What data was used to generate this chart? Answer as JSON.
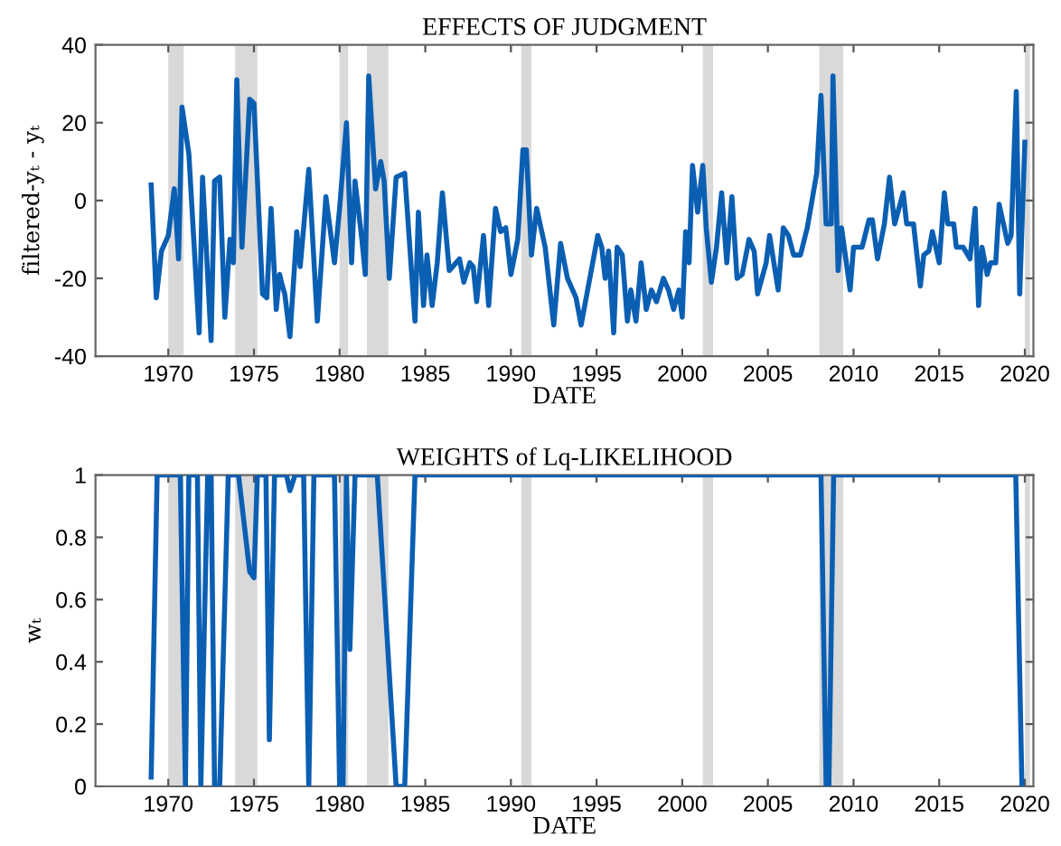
{
  "chart_data": [
    {
      "type": "line",
      "title": "EFFECTS OF JUDGMENT",
      "xlabel": "DATE",
      "ylabel": "filtered-yₜ - yₜ",
      "xlim": [
        1965.75,
        2020.5
      ],
      "xticks": [
        1970,
        1975,
        1980,
        1985,
        1990,
        1995,
        2000,
        2005,
        2010,
        2015,
        2020
      ],
      "ylim": [
        -40,
        40
      ],
      "yticks": [
        -40,
        -20,
        0,
        20,
        40
      ],
      "grid": false,
      "line_style": "solid",
      "marker": "none",
      "bands": [
        {
          "axis": "x",
          "from": 1970.0,
          "to": 1970.9,
          "color": "#d9d9d9"
        },
        {
          "axis": "x",
          "from": 1973.9,
          "to": 1975.2,
          "color": "#d9d9d9"
        },
        {
          "axis": "x",
          "from": 1980.0,
          "to": 1980.5,
          "color": "#d9d9d9"
        },
        {
          "axis": "x",
          "from": 1981.6,
          "to": 1982.85,
          "color": "#d9d9d9"
        },
        {
          "axis": "x",
          "from": 1990.6,
          "to": 1991.2,
          "color": "#d9d9d9"
        },
        {
          "axis": "x",
          "from": 2001.2,
          "to": 2001.8,
          "color": "#d9d9d9"
        },
        {
          "axis": "x",
          "from": 2008.0,
          "to": 2009.4,
          "color": "#d9d9d9"
        },
        {
          "axis": "x",
          "from": 2020.0,
          "to": 2020.3,
          "color": "#d9d9d9"
        }
      ],
      "series": [
        {
          "color": "#0b5fb3",
          "x": [
            1969.0,
            1969.3,
            1969.6,
            1970.0,
            1970.35,
            1970.6,
            1970.8,
            1971.2,
            1971.8,
            1972.0,
            1972.5,
            1972.7,
            1973.0,
            1973.3,
            1973.6,
            1973.8,
            1974.0,
            1974.3,
            1974.75,
            1975.0,
            1975.5,
            1975.75,
            1976.0,
            1976.3,
            1976.5,
            1976.6,
            1976.8,
            1977.1,
            1977.5,
            1977.7,
            1978.2,
            1978.7,
            1979.2,
            1979.7,
            1980.0,
            1980.4,
            1980.7,
            1980.9,
            1981.3,
            1981.5,
            1981.7,
            1982.1,
            1982.4,
            1982.6,
            1982.9,
            1983.3,
            1983.8,
            1984.4,
            1984.6,
            1984.9,
            1985.1,
            1985.4,
            1985.7,
            1986.0,
            1986.4,
            1987.0,
            1987.25,
            1987.6,
            1987.8,
            1988.0,
            1988.4,
            1988.7,
            1989.1,
            1989.4,
            1989.7,
            1990.0,
            1990.4,
            1990.7,
            1990.9,
            1991.2,
            1991.5,
            1992.0,
            1992.5,
            1992.9,
            1993.3,
            1993.8,
            1994.1,
            1995.07,
            1995.3,
            1995.5,
            1995.7,
            1996.0,
            1996.2,
            1996.5,
            1996.8,
            1997.0,
            1997.3,
            1997.6,
            1997.9,
            1998.2,
            1998.5,
            1998.7,
            1998.9,
            1999.2,
            1999.5,
            1999.8,
            2000.0,
            2000.2,
            2000.4,
            2000.6,
            2000.9,
            2001.2,
            2001.4,
            2001.7,
            2002.0,
            2002.3,
            2002.6,
            2002.9,
            2003.2,
            2003.5,
            2003.9,
            2004.2,
            2004.4,
            2004.9,
            2005.1,
            2005.6,
            2005.9,
            2006.2,
            2006.5,
            2006.9,
            2007.3,
            2007.85,
            2008.1,
            2008.4,
            2008.7,
            2008.8,
            2009.1,
            2009.3,
            2009.8,
            2010.0,
            2010.5,
            2010.9,
            2011.1,
            2011.4,
            2011.8,
            2012.1,
            2012.4,
            2012.9,
            2013.1,
            2013.5,
            2013.9,
            2014.1,
            2014.4,
            2014.6,
            2015.0,
            2015.3,
            2015.5,
            2015.85,
            2016.0,
            2016.4,
            2016.8,
            2017.1,
            2017.3,
            2017.5,
            2017.8,
            2018.0,
            2018.3,
            2018.5,
            2019.0,
            2019.2,
            2019.5,
            2019.7,
            2020.0
          ],
          "values": [
            4,
            -25,
            -13,
            -9,
            3,
            -15,
            24,
            12,
            -34,
            6,
            -36,
            5,
            6,
            -30,
            -10,
            -16,
            31,
            -12,
            26,
            25,
            -24,
            -25,
            -2,
            -28,
            -19,
            -21,
            -24,
            -35,
            -8,
            -17,
            8,
            -31,
            1,
            -16,
            -2,
            20,
            -16,
            5,
            -10,
            -19,
            32,
            3,
            10,
            5,
            -20,
            6,
            7,
            -31,
            -3,
            -27,
            -14,
            -27,
            -16,
            2,
            -18,
            -15,
            -21,
            -16,
            -17,
            -26,
            -9,
            -27,
            -2,
            -8,
            -7,
            -19,
            -10,
            13,
            13,
            -14,
            -2,
            -12,
            -32,
            -11,
            -20,
            -25,
            -32,
            -9,
            -12,
            -20,
            -13,
            -34,
            -12,
            -14,
            -31,
            -23,
            -31,
            -16,
            -28,
            -23,
            -26,
            -23,
            -20,
            -23,
            -28,
            -23,
            -30,
            -8,
            -16,
            9,
            -3,
            9,
            -7,
            -21,
            -12,
            2,
            -16,
            1,
            -20,
            -19,
            -10,
            -13,
            -24,
            -16,
            -9,
            -23,
            -7,
            -9,
            -14,
            -14,
            -7,
            7,
            27,
            -6,
            -6,
            32,
            -18,
            -7,
            -23,
            -12,
            -12,
            -5,
            -5,
            -15,
            -6,
            6,
            -6,
            2,
            -6,
            -6,
            -22,
            -14,
            -13,
            -8,
            -16,
            2,
            -6,
            -6,
            -12,
            -12,
            -15,
            -2,
            -27,
            -12,
            -19,
            -16,
            -16,
            -1,
            -11,
            -9,
            28,
            -24,
            15
          ]
        }
      ]
    },
    {
      "type": "line",
      "title": "WEIGHTS of Lq-LIKELIHOOD",
      "xlabel": "DATE",
      "ylabel": "wₜ",
      "xlim": [
        1965.75,
        2020.5
      ],
      "xticks": [
        1970,
        1975,
        1980,
        1985,
        1990,
        1995,
        2000,
        2005,
        2010,
        2015,
        2020
      ],
      "ylim": [
        0,
        1
      ],
      "yticks": [
        0,
        0.2,
        0.4,
        0.6,
        0.8,
        1
      ],
      "grid": false,
      "line_style": "solid",
      "marker": "none",
      "bands": [
        {
          "axis": "x",
          "from": 1970.0,
          "to": 1970.9,
          "color": "#d9d9d9"
        },
        {
          "axis": "x",
          "from": 1973.9,
          "to": 1975.2,
          "color": "#d9d9d9"
        },
        {
          "axis": "x",
          "from": 1980.0,
          "to": 1980.5,
          "color": "#d9d9d9"
        },
        {
          "axis": "x",
          "from": 1981.6,
          "to": 1982.85,
          "color": "#d9d9d9"
        },
        {
          "axis": "x",
          "from": 1990.6,
          "to": 1991.2,
          "color": "#d9d9d9"
        },
        {
          "axis": "x",
          "from": 2001.2,
          "to": 2001.8,
          "color": "#d9d9d9"
        },
        {
          "axis": "x",
          "from": 2008.0,
          "to": 2009.4,
          "color": "#d9d9d9"
        },
        {
          "axis": "x",
          "from": 2020.0,
          "to": 2020.3,
          "color": "#d9d9d9"
        }
      ],
      "series": [
        {
          "color": "#0b5fb3",
          "x": [
            1969.0,
            1969.35,
            1970.7,
            1971.0,
            1971.2,
            1971.7,
            1971.9,
            1972.3,
            1972.5,
            1972.7,
            1973.0,
            1973.5,
            1974.1,
            1974.75,
            1975.0,
            1975.2,
            1975.7,
            1975.9,
            1976.2,
            1976.9,
            1977.1,
            1977.4,
            1977.9,
            1978.2,
            1978.5,
            1979.7,
            1980.0,
            1980.2,
            1980.4,
            1980.6,
            1980.9,
            1982.2,
            1983.3,
            1983.8,
            1984.4,
            2008.1,
            2008.4,
            2008.56,
            2008.84,
            2019.47,
            2019.83
          ],
          "values": [
            0.03,
            1,
            1,
            0,
            1,
            1,
            0,
            1,
            1,
            0,
            0,
            1,
            1,
            0.69,
            0.67,
            1,
            1,
            0.15,
            1,
            1,
            0.95,
            1,
            1,
            0,
            1,
            1,
            0,
            0,
            1,
            0.44,
            1,
            1,
            0,
            0,
            1,
            1,
            0,
            0,
            1,
            1,
            0
          ]
        }
      ]
    }
  ]
}
